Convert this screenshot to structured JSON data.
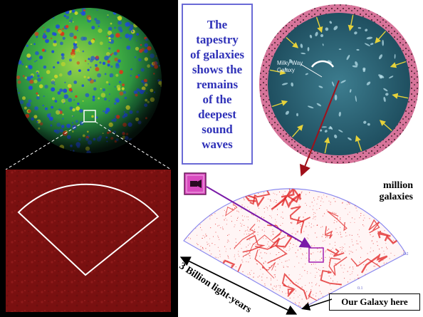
{
  "tapestry_text": "The\ntapestry\nof galaxies\nshows the\nremains\nof the\ndeepest\nsound\nwaves",
  "milky_way_label": "Milky Way\nGalaxy",
  "million_galaxies_label": "million\ngalaxies",
  "light_years_label": "3 Billion light-years",
  "our_galaxy_label": "Our Galaxy here",
  "survey_tick_labels": [
    "0.1",
    "0.2"
  ],
  "icons": [
    "cmb-sphere",
    "zoom-square",
    "cmb-patch",
    "expanding-universe-disk",
    "camera-icon",
    "galaxy-survey-wedge"
  ],
  "colors": {
    "cmb_green": "#3fae42",
    "cmb_blue": "#1f4fd6",
    "patch_red": "#7a1010",
    "disk_teal": "#2c5e6f",
    "disk_rim": "#d7749a",
    "survey_red": "#e01f1f",
    "text_blue": "#2f31b8",
    "arrow_dark_red": "#a0101a",
    "arrow_purple": "#7a1aa8",
    "camera_magenta": "#d94bbf"
  }
}
